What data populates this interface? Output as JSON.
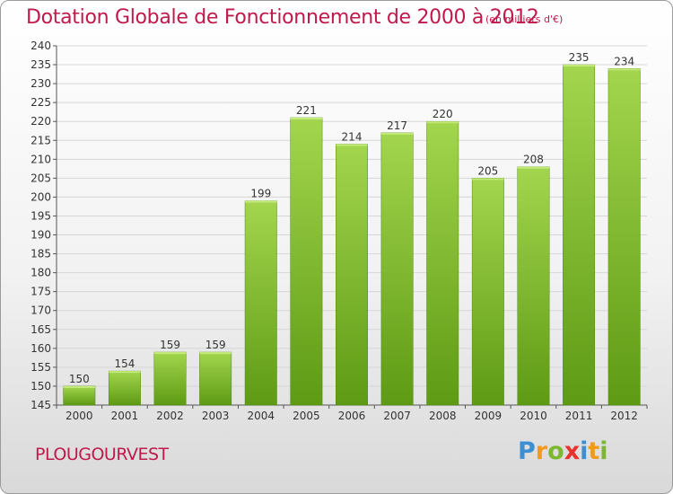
{
  "header": {
    "title": "Dotation Globale de Fonctionnement de 2000 à 2012",
    "unit": "(en milliers d'€)"
  },
  "footer": {
    "commune": "PLOUGOURVEST",
    "logo_letters": [
      "P",
      "r",
      "o",
      "x",
      "i",
      "t",
      "i"
    ]
  },
  "colors": {
    "title": "#c0194c",
    "bar_light": "#a3d64e",
    "bar_dark": "#5e9a14",
    "grid": "#d6d6d6"
  },
  "chart_data": {
    "type": "bar",
    "title": "Dotation Globale de Fonctionnement de 2000 à 2012",
    "xlabel": "",
    "ylabel": "",
    "categories": [
      "2000",
      "2001",
      "2002",
      "2003",
      "2004",
      "2005",
      "2006",
      "2007",
      "2008",
      "2009",
      "2010",
      "2011",
      "2012"
    ],
    "values": [
      150,
      154,
      159,
      159,
      199,
      221,
      214,
      217,
      220,
      205,
      208,
      235,
      234
    ],
    "ylim": [
      145,
      240
    ],
    "ytick_step": 5,
    "grid": true,
    "legend": "none"
  }
}
